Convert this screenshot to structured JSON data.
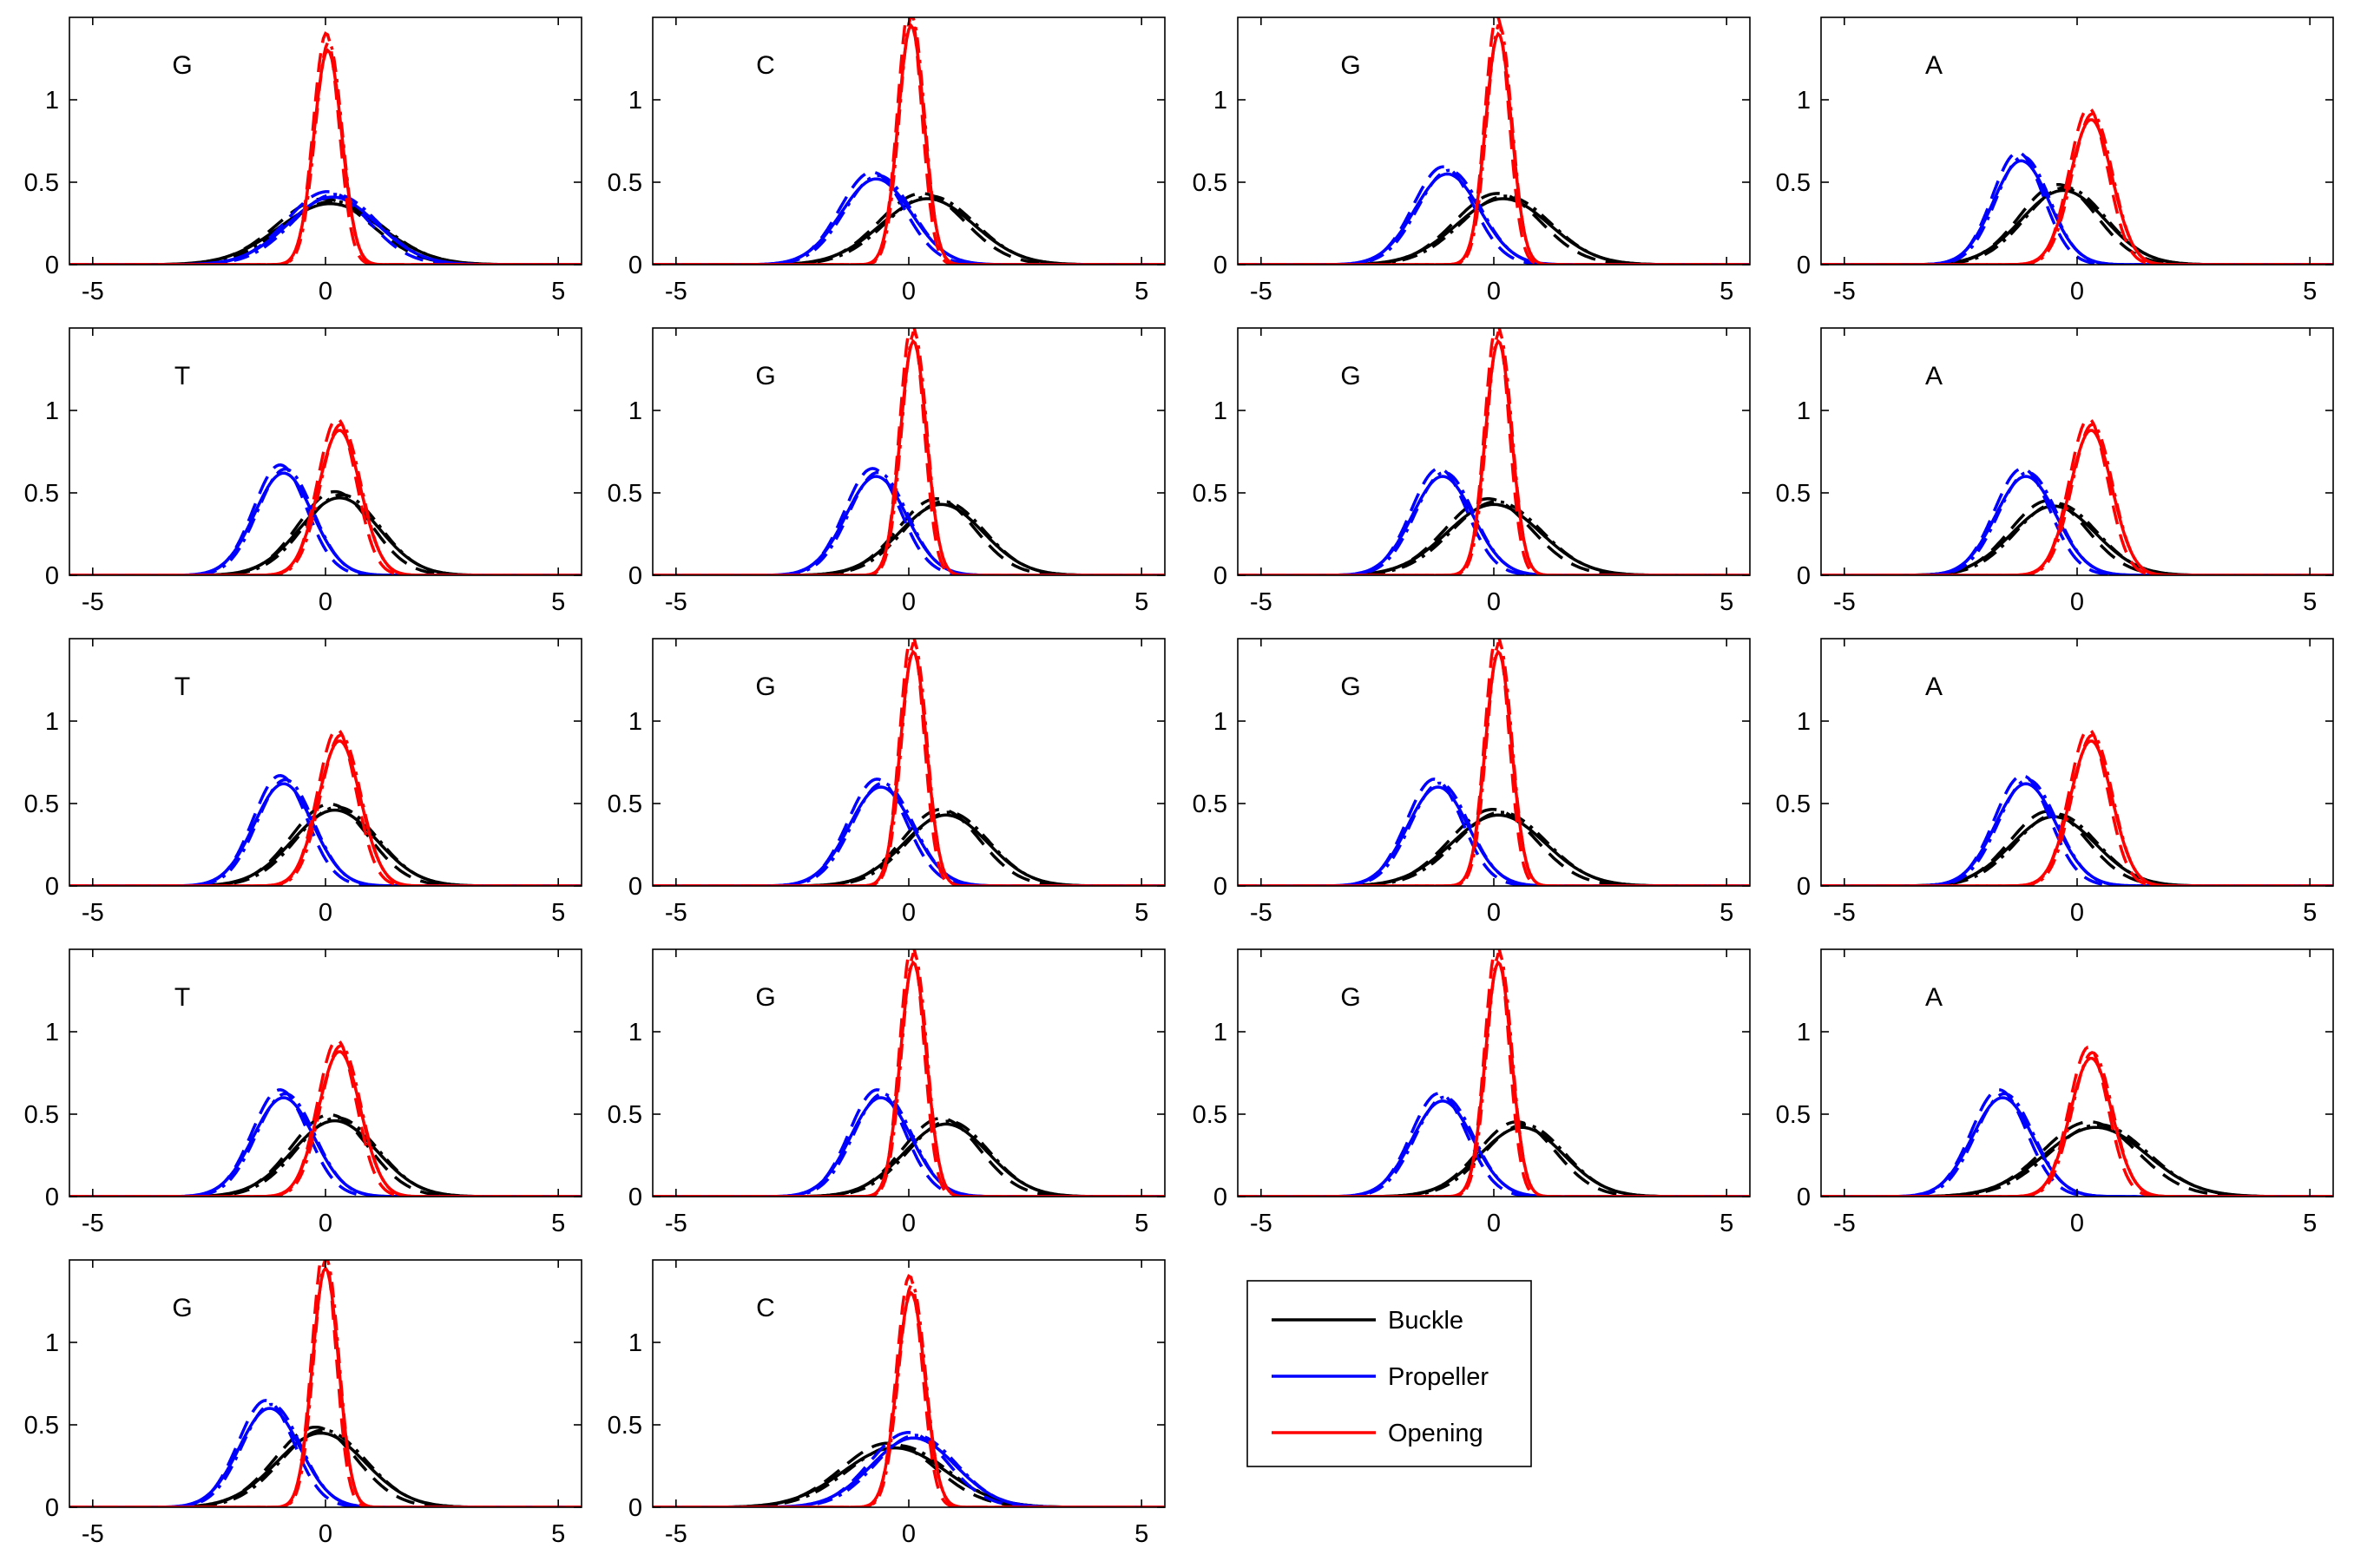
{
  "chart_data": {
    "type": "line",
    "xlim": [
      -5.5,
      5.5
    ],
    "ylim": [
      0,
      1.5
    ],
    "xticks": [
      -5,
      0,
      5
    ],
    "yticks": [
      0,
      0.5,
      1
    ],
    "xtick_labels": [
      "-5",
      "0",
      "5"
    ],
    "ytick_labels": [
      "0",
      "0.5",
      "1"
    ],
    "grid": false,
    "legend": {
      "placement": "row-5-col-3",
      "entries": [
        {
          "label": "Buckle",
          "color": "#000000"
        },
        {
          "label": "Propeller",
          "color": "#0000ff"
        },
        {
          "label": "Opening",
          "color": "#ff0000"
        }
      ]
    },
    "series_colors": {
      "buckle": "#000000",
      "propeller": "#0000ff",
      "opening": "#ff0000"
    },
    "line_styles": [
      "solid",
      "dashed",
      "dashdot"
    ],
    "panels": [
      {
        "label": "G",
        "buckle": [
          0.1,
          1.1,
          0.37
        ],
        "propeller": [
          0.15,
          0.95,
          0.41
        ],
        "opening": [
          0.05,
          0.3,
          1.3
        ]
      },
      {
        "label": "C",
        "buckle": [
          0.4,
          1.0,
          0.4
        ],
        "propeller": [
          -0.7,
          0.75,
          0.52
        ],
        "opening": [
          0.05,
          0.28,
          1.45
        ]
      },
      {
        "label": "G",
        "buckle": [
          0.2,
          1.0,
          0.4
        ],
        "propeller": [
          -1.0,
          0.7,
          0.55
        ],
        "opening": [
          0.1,
          0.28,
          1.4
        ]
      },
      {
        "label": "A",
        "buckle": [
          -0.3,
          0.9,
          0.45
        ],
        "propeller": [
          -1.2,
          0.6,
          0.63
        ],
        "opening": [
          0.3,
          0.45,
          0.88
        ]
      },
      {
        "label": "T",
        "buckle": [
          0.3,
          0.85,
          0.47
        ],
        "propeller": [
          -0.9,
          0.62,
          0.62
        ],
        "opening": [
          0.3,
          0.45,
          0.88
        ]
      },
      {
        "label": "G",
        "buckle": [
          0.7,
          0.9,
          0.43
        ],
        "propeller": [
          -0.7,
          0.65,
          0.6
        ],
        "opening": [
          0.1,
          0.28,
          1.42
        ]
      },
      {
        "label": "G",
        "buckle": [
          0.0,
          1.0,
          0.43
        ],
        "propeller": [
          -1.1,
          0.65,
          0.6
        ],
        "opening": [
          0.1,
          0.28,
          1.42
        ]
      },
      {
        "label": "A",
        "buckle": [
          -0.5,
          0.9,
          0.42
        ],
        "propeller": [
          -1.1,
          0.65,
          0.6
        ],
        "opening": [
          0.3,
          0.45,
          0.88
        ]
      },
      {
        "label": "T",
        "buckle": [
          0.2,
          0.9,
          0.46
        ],
        "propeller": [
          -0.9,
          0.63,
          0.62
        ],
        "opening": [
          0.3,
          0.45,
          0.88
        ]
      },
      {
        "label": "G",
        "buckle": [
          0.8,
          0.9,
          0.43
        ],
        "propeller": [
          -0.6,
          0.68,
          0.6
        ],
        "opening": [
          0.1,
          0.28,
          1.42
        ]
      },
      {
        "label": "G",
        "buckle": [
          0.1,
          1.0,
          0.43
        ],
        "propeller": [
          -1.2,
          0.65,
          0.6
        ],
        "opening": [
          0.1,
          0.28,
          1.42
        ]
      },
      {
        "label": "A",
        "buckle": [
          -0.5,
          0.9,
          0.42
        ],
        "propeller": [
          -1.1,
          0.65,
          0.62
        ],
        "opening": [
          0.3,
          0.45,
          0.88
        ]
      },
      {
        "label": "T",
        "buckle": [
          0.2,
          0.9,
          0.46
        ],
        "propeller": [
          -0.9,
          0.65,
          0.6
        ],
        "opening": [
          0.3,
          0.45,
          0.88
        ]
      },
      {
        "label": "G",
        "buckle": [
          0.8,
          0.9,
          0.44
        ],
        "propeller": [
          -0.6,
          0.65,
          0.6
        ],
        "opening": [
          0.1,
          0.28,
          1.42
        ]
      },
      {
        "label": "G",
        "buckle": [
          0.6,
          0.9,
          0.42
        ],
        "propeller": [
          -1.1,
          0.65,
          0.58
        ],
        "opening": [
          0.1,
          0.28,
          1.42
        ]
      },
      {
        "label": "A",
        "buckle": [
          0.4,
          1.1,
          0.42
        ],
        "propeller": [
          -1.6,
          0.65,
          0.6
        ],
        "opening": [
          0.3,
          0.45,
          0.84
        ]
      },
      {
        "label": "G",
        "buckle": [
          -0.1,
          0.95,
          0.45
        ],
        "propeller": [
          -1.2,
          0.65,
          0.6
        ],
        "opening": [
          0.0,
          0.28,
          1.45
        ]
      },
      {
        "label": "C",
        "buckle": [
          -0.3,
          1.1,
          0.36
        ],
        "propeller": [
          0.1,
          0.9,
          0.42
        ],
        "opening": [
          0.05,
          0.3,
          1.3
        ]
      }
    ]
  }
}
